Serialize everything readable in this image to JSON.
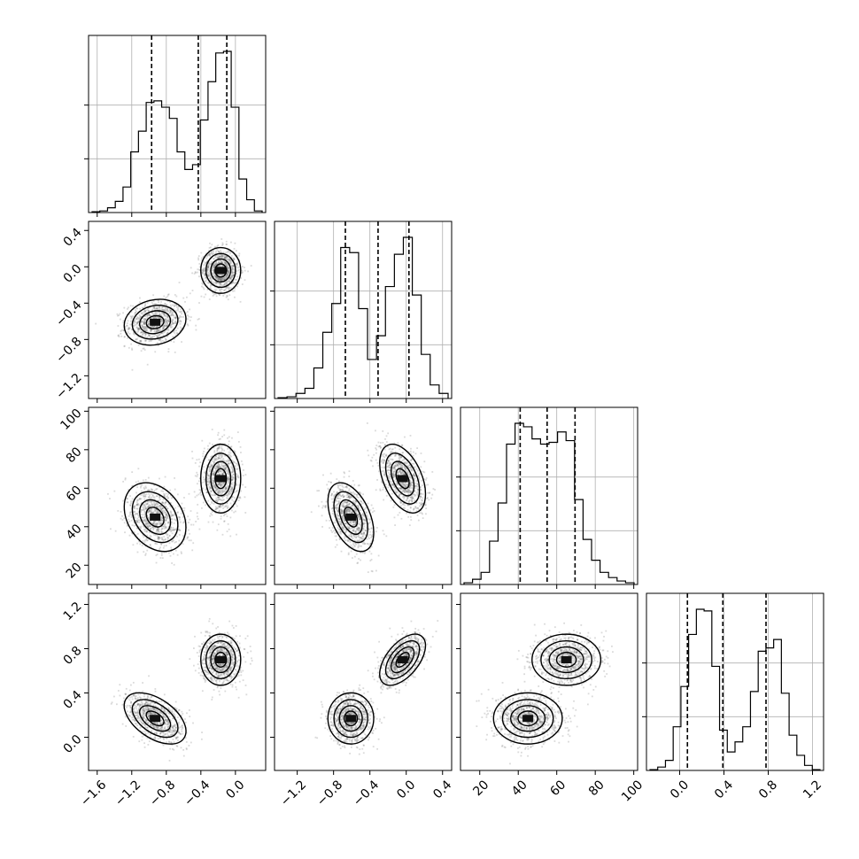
{
  "chart_data": {
    "type": "corner",
    "grid": true,
    "params": [
      {
        "range": [
          -1.7,
          0.35
        ],
        "ticks": [
          -1.6,
          -1.2,
          -0.8,
          -0.4,
          0.0
        ],
        "tick_labels": [
          "−1.6",
          "−1.2",
          "−0.8",
          "−0.4",
          "0.0"
        ],
        "quantiles": [
          -0.97,
          -0.43,
          -0.1
        ],
        "hist": [
          0.005,
          0.01,
          0.03,
          0.07,
          0.16,
          0.38,
          0.51,
          0.69,
          0.7,
          0.66,
          0.59,
          0.38,
          0.27,
          0.3,
          0.58,
          0.82,
          1.0,
          1.01,
          0.66,
          0.21,
          0.08,
          0.01
        ]
      },
      {
        "range": [
          -1.45,
          0.5
        ],
        "ticks": [
          -1.2,
          -0.8,
          -0.4,
          0.0,
          0.4
        ],
        "tick_labels": [
          "−1.2",
          "−0.8",
          "−0.4",
          "0.0",
          "0.4"
        ],
        "quantiles": [
          -0.67,
          -0.31,
          0.03
        ],
        "hist": [
          0.005,
          0.01,
          0.03,
          0.06,
          0.18,
          0.39,
          0.56,
          0.89,
          0.86,
          0.53,
          0.23,
          0.37,
          0.66,
          0.85,
          0.95,
          0.61,
          0.26,
          0.08,
          0.03
        ]
      },
      {
        "range": [
          10,
          102
        ],
        "ticks": [
          20,
          40,
          60,
          80,
          100
        ],
        "tick_labels": [
          "20",
          "40",
          "60",
          "80",
          "100"
        ],
        "quantiles": [
          41,
          55,
          69.5
        ],
        "hist": [
          0.01,
          0.03,
          0.07,
          0.25,
          0.47,
          0.81,
          0.93,
          0.91,
          0.84,
          0.81,
          0.82,
          0.88,
          0.83,
          0.49,
          0.26,
          0.14,
          0.07,
          0.04,
          0.02,
          0.01
        ]
      },
      {
        "range": [
          -0.3,
          1.3
        ],
        "ticks": [
          0.0,
          0.4,
          0.8,
          1.2
        ],
        "tick_labels": [
          "0.0",
          "0.4",
          "0.8",
          "1.2"
        ],
        "quantiles": [
          0.07,
          0.39,
          0.78
        ],
        "hist": [
          0.005,
          0.02,
          0.06,
          0.26,
          0.5,
          0.81,
          0.96,
          0.95,
          0.62,
          0.24,
          0.11,
          0.17,
          0.26,
          0.47,
          0.71,
          0.73,
          0.78,
          0.46,
          0.21,
          0.09,
          0.03,
          0.005
        ]
      }
    ],
    "modes": [
      {
        "center": [
          -0.93,
          -0.61,
          45.0,
          0.17
        ],
        "sigma": [
          0.17,
          0.12,
          8.5,
          0.11
        ]
      },
      {
        "center": [
          -0.17,
          -0.04,
          65.0,
          0.7
        ],
        "sigma": [
          0.11,
          0.12,
          8.5,
          0.11
        ]
      }
    ],
    "correlations": {
      "1-0": [
        0.15,
        0.0
      ],
      "2-0": [
        -0.3,
        0.0
      ],
      "2-1": [
        -0.45,
        -0.45
      ],
      "3-0": [
        -0.5,
        0.0
      ],
      "3-1": [
        0.0,
        0.55
      ],
      "3-2": [
        0.0,
        0.0
      ]
    }
  }
}
